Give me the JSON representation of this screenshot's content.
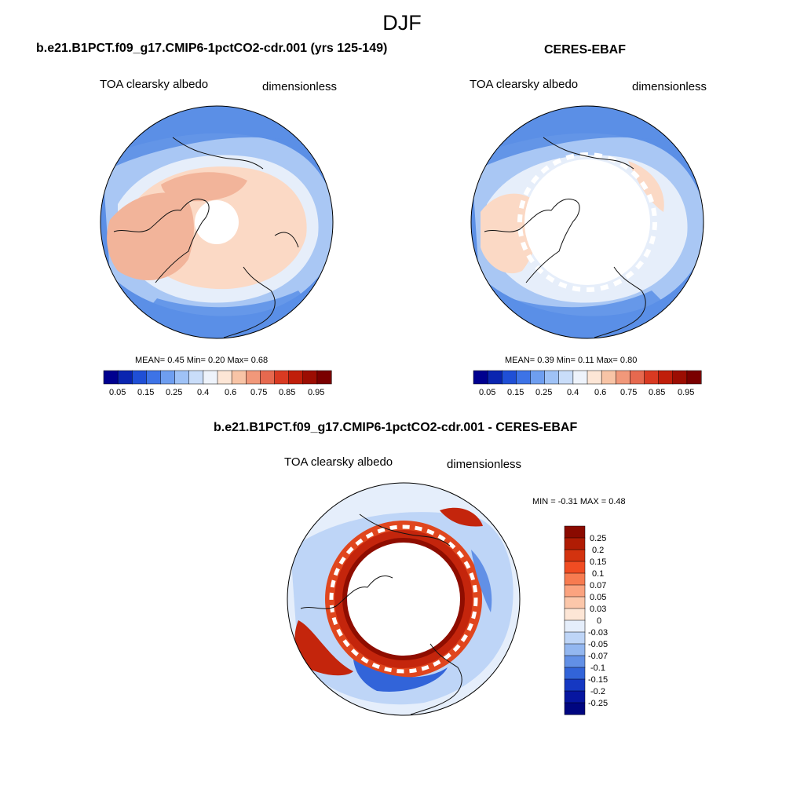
{
  "figure": {
    "season": "DJF"
  },
  "panels": [
    {
      "id": "model",
      "title": "b.e21.B1PCT.f09_g17.CMIP6-1pctCO2-cdr.001 (yrs 125-149)",
      "variable": "TOA clearsky albedo",
      "units": "dimensionless",
      "stats": {
        "mean_label": "MEAN=",
        "mean": "0.45",
        "min_label": "Min=",
        "min": "0.20",
        "max_label": "Max=",
        "max": "0.68"
      }
    },
    {
      "id": "obs",
      "title": "CERES-EBAF",
      "variable": "TOA clearsky albedo",
      "units": "dimensionless",
      "stats": {
        "mean_label": "MEAN=",
        "mean": "0.39",
        "min_label": "Min=",
        "min": "0.11",
        "max_label": "Max=",
        "max": "0.80"
      }
    },
    {
      "id": "diff",
      "title": "b.e21.B1PCT.f09_g17.CMIP6-1pctCO2-cdr.001 - CERES-EBAF",
      "variable": "TOA clearsky albedo",
      "units": "dimensionless",
      "stats": {
        "min_label": "MIN =",
        "min": "-0.31",
        "max_label": "MAX =",
        "max": "0.48"
      }
    }
  ],
  "colorbar_abs": {
    "labels": [
      "0.05",
      "0.15",
      "0.25",
      "0.4",
      "0.6",
      "0.75",
      "0.85",
      "0.95"
    ],
    "colors": [
      "#00008f",
      "#0a25b0",
      "#1f4fd6",
      "#3d73e6",
      "#6e9ef0",
      "#9fc2f6",
      "#c9ddf9",
      "#eef3fb",
      "#fde6d6",
      "#f8c4a6",
      "#f1987a",
      "#e6694f",
      "#d93a22",
      "#c01e0a",
      "#9c0d02",
      "#7a0000"
    ]
  },
  "colorbar_diff": {
    "labels": [
      "0.25",
      "0.2",
      "0.15",
      "0.1",
      "0.07",
      "0.05",
      "0.03",
      "0",
      "-0.03",
      "-0.05",
      "-0.07",
      "-0.1",
      "-0.15",
      "-0.2",
      "-0.25"
    ],
    "colors": [
      "#8a0a00",
      "#b01c04",
      "#d3330f",
      "#f04c22",
      "#f77b50",
      "#fba37f",
      "#fcc7aa",
      "#fde6d6",
      "#e5eefb",
      "#bed5f7",
      "#93b7f0",
      "#6290e6",
      "#3264d9",
      "#1538c2",
      "#0716a0",
      "#000680"
    ]
  },
  "map_colors": {
    "ocean_blue": "#5b8fe6",
    "light_blue": "#a9c7f4",
    "pale": "#e6eefa",
    "salmon": "#f2b49a",
    "light_salmon": "#fbd9c5",
    "deep_red": "#c4250c",
    "dark_red": "#8f0d00",
    "red": "#e0461e"
  }
}
